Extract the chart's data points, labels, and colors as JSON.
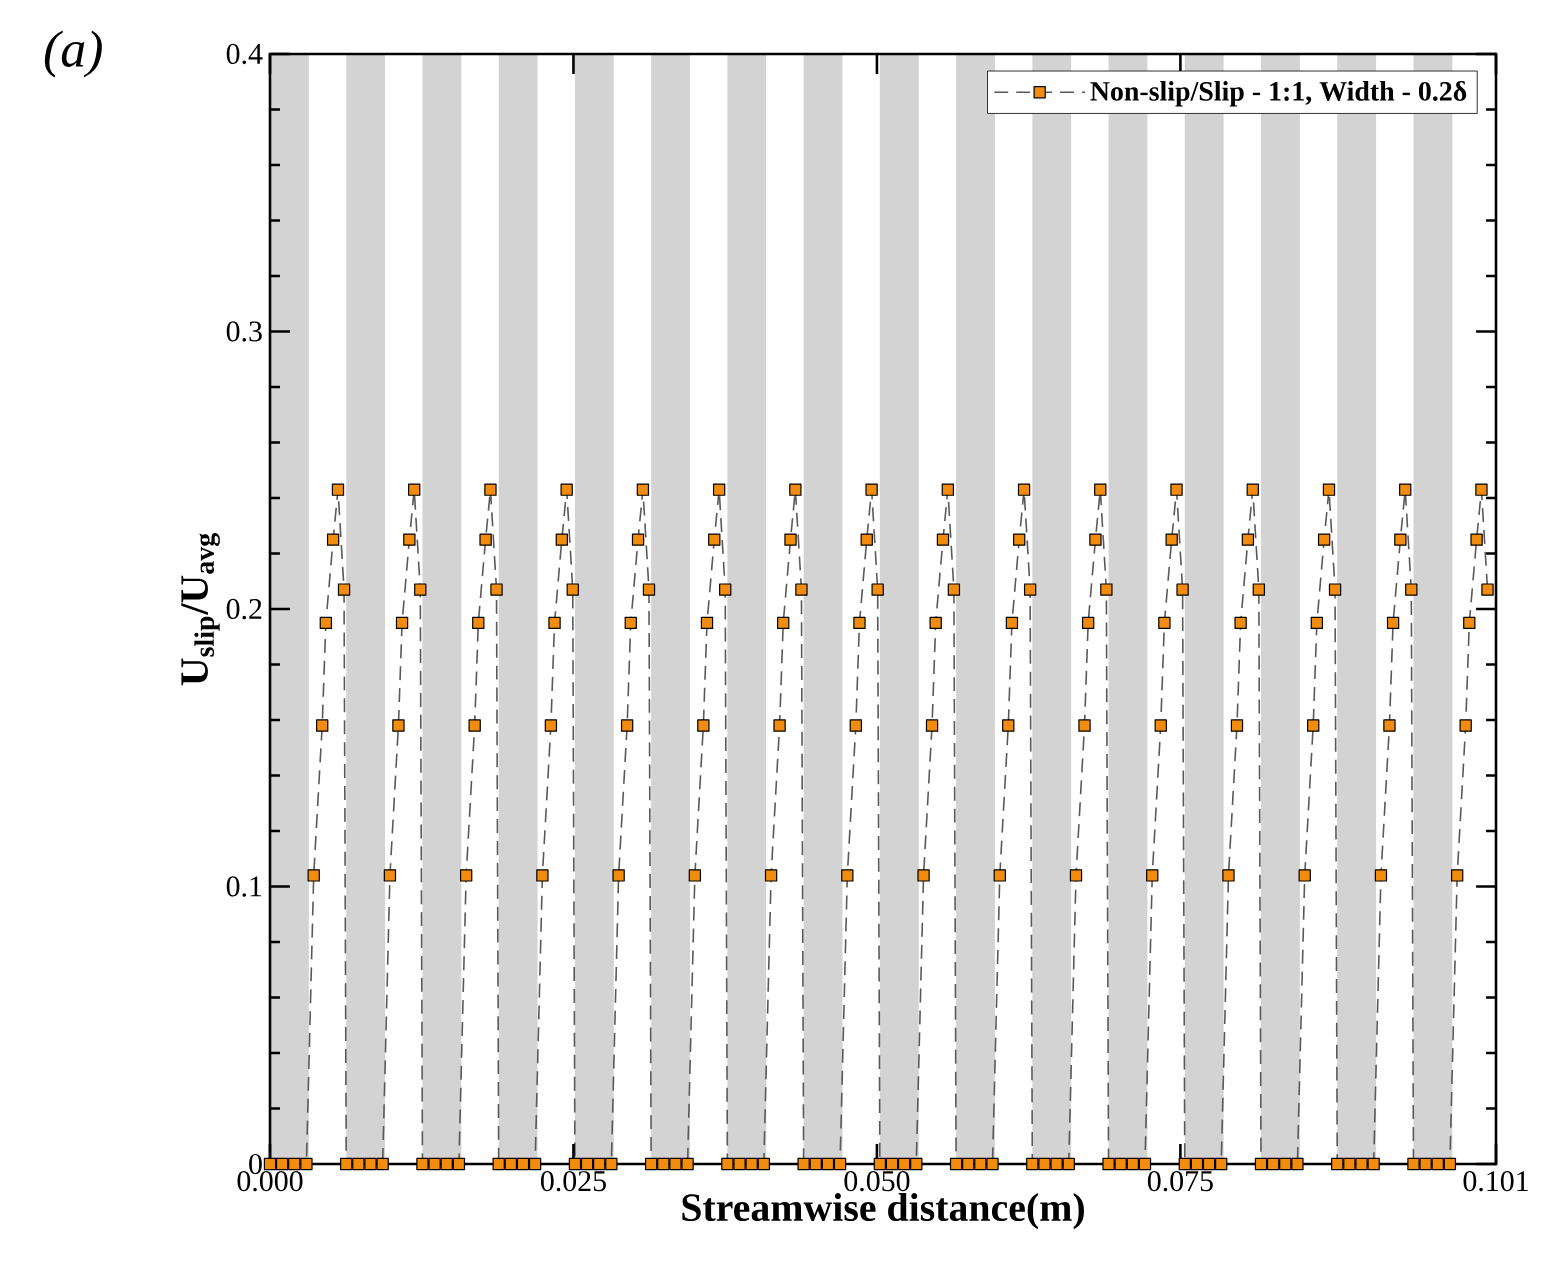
{
  "chart_data": {
    "type": "line",
    "xlabel": "Streamwise distance(m)",
    "ylabel": "U$_{slip}$/U$_{avg}$",
    "annotations": [
      "*(a)*"
    ],
    "xlim": [
      0,
      0.101
    ],
    "ylim": [
      0,
      0.4
    ],
    "xticks": [
      {
        "value": 0,
        "label": "0.000"
      },
      {
        "value": 0.025,
        "label": "0.025"
      },
      {
        "value": 0.05,
        "label": "0.050"
      },
      {
        "value": 0.075,
        "label": "0.075"
      },
      {
        "value": 0.101,
        "label": "0.101"
      }
    ],
    "yticks": [
      0,
      0.1,
      0.2,
      0.3,
      0.4
    ],
    "legend": "top right",
    "marker": "square",
    "line_style": "dashed",
    "bands": [
      {
        "axis": "x",
        "from": 0,
        "to": 0.0032,
        "color": "#d3d3d3"
      },
      {
        "axis": "x",
        "from": 0.00628,
        "to": 0.00948,
        "color": "#d3d3d3"
      },
      {
        "axis": "x",
        "from": 0.01256,
        "to": 0.01576,
        "color": "#d3d3d3"
      },
      {
        "axis": "x",
        "from": 0.01884,
        "to": 0.02204,
        "color": "#d3d3d3"
      },
      {
        "axis": "x",
        "from": 0.02512,
        "to": 0.02832,
        "color": "#d3d3d3"
      },
      {
        "axis": "x",
        "from": 0.0314,
        "to": 0.0346,
        "color": "#d3d3d3"
      },
      {
        "axis": "x",
        "from": 0.03768,
        "to": 0.04088,
        "color": "#d3d3d3"
      },
      {
        "axis": "x",
        "from": 0.04396,
        "to": 0.04716,
        "color": "#d3d3d3"
      },
      {
        "axis": "x",
        "from": 0.05024,
        "to": 0.05344,
        "color": "#d3d3d3"
      },
      {
        "axis": "x",
        "from": 0.05652,
        "to": 0.05972,
        "color": "#d3d3d3"
      },
      {
        "axis": "x",
        "from": 0.0628,
        "to": 0.066,
        "color": "#d3d3d3"
      },
      {
        "axis": "x",
        "from": 0.06908,
        "to": 0.07228,
        "color": "#d3d3d3"
      },
      {
        "axis": "x",
        "from": 0.07536,
        "to": 0.07856,
        "color": "#d3d3d3"
      },
      {
        "axis": "x",
        "from": 0.08164,
        "to": 0.08484,
        "color": "#d3d3d3"
      },
      {
        "axis": "x",
        "from": 0.08792,
        "to": 0.09112,
        "color": "#d3d3d3"
      },
      {
        "axis": "x",
        "from": 0.0942,
        "to": 0.0974,
        "color": "#d3d3d3"
      }
    ],
    "series": [
      {
        "name": "**Non-slip/Slip - 1:1, Width - 0.2δ**",
        "color": "#f28c0f",
        "x": [
          0,
          0.001,
          0.002,
          0.003,
          0.0036,
          0.0043,
          0.0046,
          0.0052,
          0.0056,
          0.0061,
          0.00628,
          0.00728,
          0.00828,
          0.00928,
          0.00988,
          0.01058,
          0.01088,
          0.01148,
          0.01188,
          0.01238,
          0.01256,
          0.01356,
          0.01456,
          0.01556,
          0.01616,
          0.01686,
          0.01716,
          0.01776,
          0.01816,
          0.01866,
          0.01884,
          0.01984,
          0.02084,
          0.02184,
          0.02244,
          0.02314,
          0.02344,
          0.02404,
          0.02444,
          0.02494,
          0.02512,
          0.02612,
          0.02712,
          0.02812,
          0.02872,
          0.02942,
          0.02972,
          0.03032,
          0.03072,
          0.03122,
          0.0314,
          0.0324,
          0.0334,
          0.0344,
          0.035,
          0.0357,
          0.036,
          0.0366,
          0.037,
          0.0375,
          0.03768,
          0.03868,
          0.03968,
          0.04068,
          0.04128,
          0.04198,
          0.04228,
          0.04288,
          0.04328,
          0.04378,
          0.04396,
          0.04496,
          0.04596,
          0.04696,
          0.04756,
          0.04826,
          0.04856,
          0.04916,
          0.04956,
          0.05006,
          0.05024,
          0.05124,
          0.05224,
          0.05324,
          0.05384,
          0.05454,
          0.05484,
          0.05544,
          0.05584,
          0.05634,
          0.05652,
          0.05752,
          0.05852,
          0.05952,
          0.06012,
          0.06082,
          0.06112,
          0.06172,
          0.06212,
          0.06262,
          0.0628,
          0.0638,
          0.0648,
          0.0658,
          0.0664,
          0.0671,
          0.0674,
          0.068,
          0.0684,
          0.0689,
          0.06908,
          0.07008,
          0.07108,
          0.07208,
          0.07268,
          0.07338,
          0.07368,
          0.07428,
          0.07468,
          0.07518,
          0.07536,
          0.07636,
          0.07736,
          0.07836,
          0.07896,
          0.07966,
          0.07996,
          0.08056,
          0.08096,
          0.08146,
          0.08164,
          0.08264,
          0.08364,
          0.08464,
          0.08524,
          0.08594,
          0.08624,
          0.08684,
          0.08724,
          0.08774,
          0.08792,
          0.08892,
          0.08992,
          0.09092,
          0.09152,
          0.09222,
          0.09252,
          0.09312,
          0.09352,
          0.09402,
          0.0942,
          0.0952,
          0.0962,
          0.0972,
          0.0978,
          0.0985,
          0.0988,
          0.0994,
          0.0998,
          0.1003
        ],
        "values": [
          0,
          0,
          0,
          0,
          0.104,
          0.158,
          0.195,
          0.225,
          0.243,
          0.207,
          0,
          0,
          0,
          0,
          0.104,
          0.158,
          0.195,
          0.225,
          0.243,
          0.207,
          0,
          0,
          0,
          0,
          0.104,
          0.158,
          0.195,
          0.225,
          0.243,
          0.207,
          0,
          0,
          0,
          0,
          0.104,
          0.158,
          0.195,
          0.225,
          0.243,
          0.207,
          0,
          0,
          0,
          0,
          0.104,
          0.158,
          0.195,
          0.225,
          0.243,
          0.207,
          0,
          0,
          0,
          0,
          0.104,
          0.158,
          0.195,
          0.225,
          0.243,
          0.207,
          0,
          0,
          0,
          0,
          0.104,
          0.158,
          0.195,
          0.225,
          0.243,
          0.207,
          0,
          0,
          0,
          0,
          0.104,
          0.158,
          0.195,
          0.225,
          0.243,
          0.207,
          0,
          0,
          0,
          0,
          0.104,
          0.158,
          0.195,
          0.225,
          0.243,
          0.207,
          0,
          0,
          0,
          0,
          0.104,
          0.158,
          0.195,
          0.225,
          0.243,
          0.207,
          0,
          0,
          0,
          0,
          0.104,
          0.158,
          0.195,
          0.225,
          0.243,
          0.207,
          0,
          0,
          0,
          0,
          0.104,
          0.158,
          0.195,
          0.225,
          0.243,
          0.207,
          0,
          0,
          0,
          0,
          0.104,
          0.158,
          0.195,
          0.225,
          0.243,
          0.207,
          0,
          0,
          0,
          0,
          0.104,
          0.158,
          0.195,
          0.225,
          0.243,
          0.207,
          0,
          0,
          0,
          0,
          0.104,
          0.158,
          0.195,
          0.225,
          0.243,
          0.207,
          0,
          0,
          0,
          0,
          0.104,
          0.158,
          0.195,
          0.225,
          0.243,
          0.207
        ]
      }
    ]
  }
}
